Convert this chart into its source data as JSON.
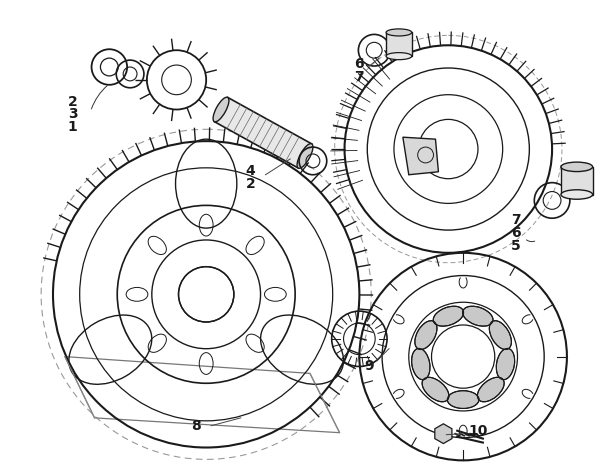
{
  "bg_color": "#ffffff",
  "line_color": "#1a1a1a",
  "label_color": "#1a1a1a",
  "fig_width": 6.12,
  "fig_height": 4.75,
  "dpi": 100
}
